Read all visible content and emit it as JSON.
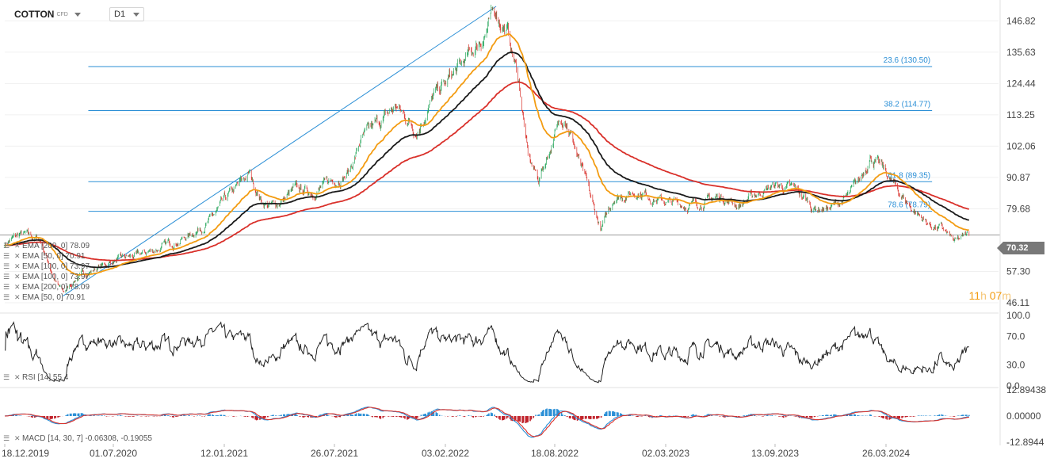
{
  "header": {
    "symbol": "COTTON",
    "symbol_suffix": "CFD",
    "timeframe": "D1"
  },
  "timer": {
    "hours": "11",
    "h_unit": "h",
    "minutes": "07",
    "m_unit": "m"
  },
  "last_price_label": "70.32",
  "indicators": {
    "price_legends": [
      "EMA [200, 0] 78.09",
      "EMA [50, 0] 70.91",
      "EMA [100, 0] 73.97",
      "EMA [100, 0] 73.97",
      "EMA [200, 0] 78.09",
      "EMA [50, 0] 70.91"
    ],
    "rsi_legend": "RSI [14] 55.4",
    "macd_legend": "MACD [14, 30, 7] -0.06308, -0.19055"
  },
  "colors": {
    "ema50": "#f39c12",
    "ema100": "#1a1a1a",
    "ema200": "#d9302a",
    "fib": "#2b8fd6",
    "up": "#26a65b",
    "down": "#d9302a"
  },
  "chart_data": {
    "type": "candlestick",
    "price_axis_ticks": [
      "146.82",
      "135.63",
      "124.44",
      "113.25",
      "102.06",
      "90.87",
      "79.68",
      "57.30",
      "46.11"
    ],
    "price_ylim": [
      43,
      152
    ],
    "x_ticks": [
      "18.12.2019",
      "01.07.2020",
      "12.01.2021",
      "26.07.2021",
      "03.02.2022",
      "18.08.2022",
      "02.03.2023",
      "13.09.2023",
      "26.03.2024"
    ],
    "x_tick_dates": [
      "2019-12-18",
      "2020-07-01",
      "2021-01-12",
      "2021-07-26",
      "2022-02-03",
      "2022-08-18",
      "2023-03-02",
      "2023-09-13",
      "2024-03-26"
    ],
    "last_date": "2024-08-19",
    "close_path": [
      [
        "2019-12-18",
        67.5
      ],
      [
        "2020-01-15",
        70.5
      ],
      [
        "2020-02-20",
        68.5
      ],
      [
        "2020-03-20",
        53.0
      ],
      [
        "2020-04-02",
        49.5
      ],
      [
        "2020-04-25",
        55.0
      ],
      [
        "2020-06-01",
        58.5
      ],
      [
        "2020-07-01",
        61.0
      ],
      [
        "2020-08-15",
        63.0
      ],
      [
        "2020-10-01",
        66.5
      ],
      [
        "2020-11-10",
        70.0
      ],
      [
        "2020-12-20",
        76.0
      ],
      [
        "2021-01-12",
        82.0
      ],
      [
        "2021-02-25",
        92.0
      ],
      [
        "2021-03-20",
        82.0
      ],
      [
        "2021-04-10",
        80.5
      ],
      [
        "2021-05-15",
        86.0
      ],
      [
        "2021-06-20",
        86.0
      ],
      [
        "2021-07-26",
        90.0
      ],
      [
        "2021-08-20",
        93.0
      ],
      [
        "2021-09-10",
        104.0
      ],
      [
        "2021-10-10",
        110.0
      ],
      [
        "2021-11-10",
        116.0
      ],
      [
        "2021-12-15",
        108.0
      ],
      [
        "2022-01-15",
        120.0
      ],
      [
        "2022-02-03",
        124.0
      ],
      [
        "2022-03-10",
        132.0
      ],
      [
        "2022-04-01",
        138.0
      ],
      [
        "2022-05-05",
        150.0
      ],
      [
        "2022-05-25",
        143.0
      ],
      [
        "2022-06-15",
        125.0
      ],
      [
        "2022-07-01",
        98.0
      ],
      [
        "2022-07-20",
        90.0
      ],
      [
        "2022-08-18",
        106.0
      ],
      [
        "2022-09-05",
        114.0
      ],
      [
        "2022-10-01",
        96.0
      ],
      [
        "2022-10-25",
        80.0
      ],
      [
        "2022-11-08",
        72.0
      ],
      [
        "2022-12-01",
        84.0
      ],
      [
        "2023-01-15",
        86.0
      ],
      [
        "2023-03-02",
        82.0
      ],
      [
        "2023-04-15",
        81.0
      ],
      [
        "2023-06-10",
        84.0
      ],
      [
        "2023-07-10",
        81.0
      ],
      [
        "2023-08-20",
        86.0
      ],
      [
        "2023-09-13",
        88.0
      ],
      [
        "2023-10-20",
        86.0
      ],
      [
        "2023-11-20",
        80.0
      ],
      [
        "2023-12-20",
        80.0
      ],
      [
        "2024-01-20",
        84.0
      ],
      [
        "2024-02-10",
        90.0
      ],
      [
        "2024-02-27",
        99.0
      ],
      [
        "2024-03-26",
        92.0
      ],
      [
        "2024-04-20",
        85.0
      ],
      [
        "2024-05-10",
        80.0
      ],
      [
        "2024-06-10",
        74.0
      ],
      [
        "2024-07-05",
        72.0
      ],
      [
        "2024-07-25",
        67.5
      ],
      [
        "2024-08-19",
        70.3
      ]
    ],
    "ema_periods": [
      50,
      100,
      200
    ],
    "trendline": {
      "from": [
        "2020-04-01",
        48.5
      ],
      "to": [
        "2022-05-05",
        152.0
      ]
    },
    "fibonacci": {
      "from_date": "2020-02-01",
      "to_date": "2024-06-15",
      "levels": [
        {
          "label": "23.6 (130.50)",
          "value": 130.5
        },
        {
          "label": "38.2 (114.77)",
          "value": 114.77
        },
        {
          "label": "61.8 (89.35)",
          "value": 89.35
        },
        {
          "label": "78.6 (78.79)",
          "value": 78.79
        }
      ]
    },
    "last_price": 70.32,
    "rsi": {
      "ylim": [
        0,
        100
      ],
      "ticks": [
        "100.0",
        "70.0",
        "30.0",
        "0.0"
      ],
      "last": 55.4
    },
    "macd": {
      "ticks": [
        "12.89438",
        "0.00000",
        "-12.8944"
      ],
      "ylim": [
        -12.89438,
        12.89438
      ],
      "last_macd": -0.06308,
      "last_signal": -0.19055
    }
  }
}
